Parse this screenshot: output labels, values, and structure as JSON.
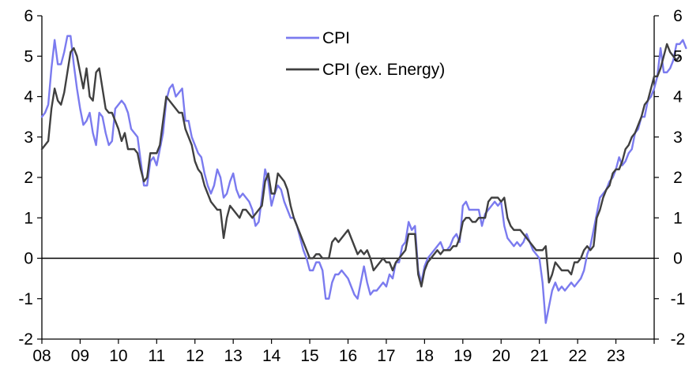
{
  "chart_data": {
    "type": "line",
    "title": "",
    "xlabel": "",
    "ylabel": "",
    "x_start_year": 2008,
    "x_step_months": 1,
    "xlim": [
      "2008-01",
      "2023-12"
    ],
    "xticks": [
      "08",
      "09",
      "10",
      "11",
      "12",
      "13",
      "14",
      "15",
      "16",
      "17",
      "18",
      "19",
      "20",
      "21",
      "22",
      "23"
    ],
    "ylim": [
      -2,
      6
    ],
    "yticks": [
      "-2",
      "-1",
      "0",
      "1",
      "2",
      "3",
      "4",
      "5",
      "6"
    ],
    "legend_position": "top-center",
    "grid": false,
    "zero_line": true,
    "series": [
      {
        "name": "CPI",
        "color": "#7b7bef",
        "values": [
          3.5,
          3.6,
          3.8,
          4.7,
          5.4,
          4.8,
          4.8,
          5.1,
          5.5,
          5.5,
          4.8,
          4.2,
          3.7,
          3.3,
          3.4,
          3.6,
          3.1,
          2.8,
          3.6,
          3.5,
          3.1,
          2.8,
          2.9,
          3.7,
          3.8,
          3.9,
          3.8,
          3.6,
          3.2,
          3.1,
          3.0,
          2.4,
          1.8,
          1.8,
          2.4,
          2.5,
          2.3,
          2.7,
          3.1,
          3.9,
          4.2,
          4.3,
          4.0,
          4.1,
          4.2,
          3.4,
          3.4,
          3.0,
          2.8,
          2.6,
          2.5,
          2.1,
          1.8,
          1.6,
          1.8,
          2.2,
          2.0,
          1.5,
          1.6,
          1.9,
          2.1,
          1.7,
          1.5,
          1.6,
          1.5,
          1.4,
          1.2,
          0.8,
          0.9,
          1.5,
          2.2,
          1.9,
          1.3,
          1.6,
          1.8,
          1.7,
          1.4,
          1.2,
          1.0,
          1.0,
          0.8,
          0.5,
          0.2,
          0.0,
          -0.3,
          -0.3,
          -0.1,
          -0.1,
          -0.3,
          -1.0,
          -1.0,
          -0.6,
          -0.4,
          -0.4,
          -0.3,
          -0.4,
          -0.5,
          -0.7,
          -0.9,
          -1.0,
          -0.6,
          -0.2,
          -0.6,
          -0.9,
          -0.8,
          -0.8,
          -0.7,
          -0.6,
          -0.7,
          -0.4,
          -0.5,
          -0.1,
          -0.1,
          0.3,
          0.4,
          0.9,
          0.7,
          0.8,
          -0.3,
          -0.6,
          -0.2,
          0.0,
          0.1,
          0.2,
          0.3,
          0.4,
          0.2,
          0.2,
          0.3,
          0.5,
          0.6,
          0.4,
          1.3,
          1.4,
          1.2,
          1.2,
          1.2,
          1.2,
          0.8,
          1.1,
          1.2,
          1.3,
          1.4,
          1.3,
          1.4,
          0.8,
          0.5,
          0.4,
          0.3,
          0.4,
          0.3,
          0.4,
          0.6,
          0.4,
          0.2,
          0.1,
          0.0,
          -0.6,
          -1.6,
          -1.2,
          -0.8,
          -0.6,
          -0.8,
          -0.7,
          -0.8,
          -0.7,
          -0.6,
          -0.7,
          -0.6,
          -0.5,
          -0.3,
          0.1,
          0.3,
          0.7,
          1.1,
          1.5,
          1.6,
          1.7,
          1.9,
          2.0,
          2.2,
          2.5,
          2.3,
          2.4,
          2.6,
          2.7,
          3.1,
          3.2,
          3.5,
          3.5,
          3.9,
          4.0,
          4.2,
          4.5,
          5.2,
          4.6,
          4.6,
          4.7,
          4.9,
          5.3,
          5.3,
          5.4,
          5.2
        ]
      },
      {
        "name": "CPI (ex. Energy)",
        "color": "#404040",
        "values": [
          2.7,
          2.8,
          2.9,
          3.7,
          4.2,
          3.9,
          3.8,
          4.1,
          4.6,
          5.1,
          5.2,
          5.0,
          4.6,
          4.2,
          4.7,
          4.0,
          3.9,
          4.6,
          4.7,
          4.2,
          3.7,
          3.6,
          3.6,
          3.4,
          3.2,
          2.9,
          3.1,
          2.7,
          2.7,
          2.7,
          2.6,
          2.2,
          1.9,
          2.0,
          2.6,
          2.6,
          2.6,
          2.8,
          3.4,
          4.0,
          3.9,
          3.8,
          3.7,
          3.6,
          3.6,
          3.2,
          3.0,
          2.8,
          2.4,
          2.2,
          2.1,
          1.8,
          1.6,
          1.4,
          1.3,
          1.2,
          1.2,
          0.5,
          1.0,
          1.3,
          1.2,
          1.1,
          1.0,
          1.2,
          1.2,
          1.1,
          1.0,
          1.1,
          1.2,
          1.3,
          1.9,
          2.1,
          1.6,
          1.6,
          2.1,
          2.0,
          1.9,
          1.7,
          1.3,
          1.0,
          0.8,
          0.6,
          0.4,
          0.2,
          0.0,
          0.0,
          0.1,
          0.1,
          0.0,
          0.0,
          0.0,
          0.4,
          0.5,
          0.4,
          0.5,
          0.6,
          0.7,
          0.5,
          0.3,
          0.1,
          0.2,
          0.1,
          0.2,
          0.0,
          -0.3,
          -0.2,
          -0.1,
          0.0,
          -0.1,
          -0.1,
          -0.3,
          -0.1,
          0.0,
          0.1,
          0.2,
          0.6,
          0.6,
          0.6,
          -0.4,
          -0.7,
          -0.3,
          -0.1,
          0.0,
          0.1,
          0.2,
          0.1,
          0.2,
          0.2,
          0.2,
          0.3,
          0.3,
          0.5,
          0.9,
          1.0,
          1.0,
          0.9,
          0.9,
          1.0,
          1.0,
          1.0,
          1.4,
          1.5,
          1.5,
          1.5,
          1.4,
          1.5,
          1.0,
          0.8,
          0.7,
          0.7,
          0.7,
          0.6,
          0.5,
          0.4,
          0.3,
          0.2,
          0.2,
          0.2,
          0.3,
          -0.6,
          -0.4,
          -0.1,
          -0.2,
          -0.3,
          -0.3,
          -0.3,
          -0.4,
          -0.1,
          -0.1,
          0.0,
          0.2,
          0.3,
          0.2,
          0.3,
          1.0,
          1.2,
          1.5,
          1.7,
          1.8,
          2.1,
          2.2,
          2.2,
          2.4,
          2.7,
          2.8,
          3.0,
          3.1,
          3.3,
          3.5,
          3.8,
          3.9,
          4.2,
          4.5,
          4.5,
          4.7,
          5.0,
          5.3,
          5.1,
          5.0,
          4.9,
          5.0
        ]
      }
    ]
  }
}
